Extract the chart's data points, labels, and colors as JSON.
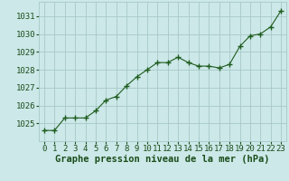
{
  "x": [
    0,
    1,
    2,
    3,
    4,
    5,
    6,
    7,
    8,
    9,
    10,
    11,
    12,
    13,
    14,
    15,
    16,
    17,
    18,
    19,
    20,
    21,
    22,
    23
  ],
  "y": [
    1024.6,
    1024.6,
    1025.3,
    1025.3,
    1025.3,
    1025.7,
    1026.3,
    1026.5,
    1027.1,
    1027.6,
    1028.0,
    1028.4,
    1028.4,
    1028.7,
    1028.4,
    1028.2,
    1028.2,
    1028.1,
    1028.3,
    1029.3,
    1029.9,
    1030.0,
    1030.4,
    1031.3
  ],
  "line_color": "#1e5c1e",
  "marker": "+",
  "marker_size": 5,
  "bg_color": "#cce8e8",
  "grid_color": "#a8c8c8",
  "xlabel": "Graphe pression niveau de la mer (hPa)",
  "xlabel_color": "#1a4d1a",
  "tick_color": "#1a4d1a",
  "ylim": [
    1024.0,
    1031.8
  ],
  "yticks": [
    1025,
    1026,
    1027,
    1028,
    1029,
    1030,
    1031
  ],
  "xlim": [
    -0.5,
    23.5
  ],
  "xticks": [
    0,
    1,
    2,
    3,
    4,
    5,
    6,
    7,
    8,
    9,
    10,
    11,
    12,
    13,
    14,
    15,
    16,
    17,
    18,
    19,
    20,
    21,
    22,
    23
  ],
  "axis_label_fontsize": 7.5,
  "tick_fontsize": 6.5
}
